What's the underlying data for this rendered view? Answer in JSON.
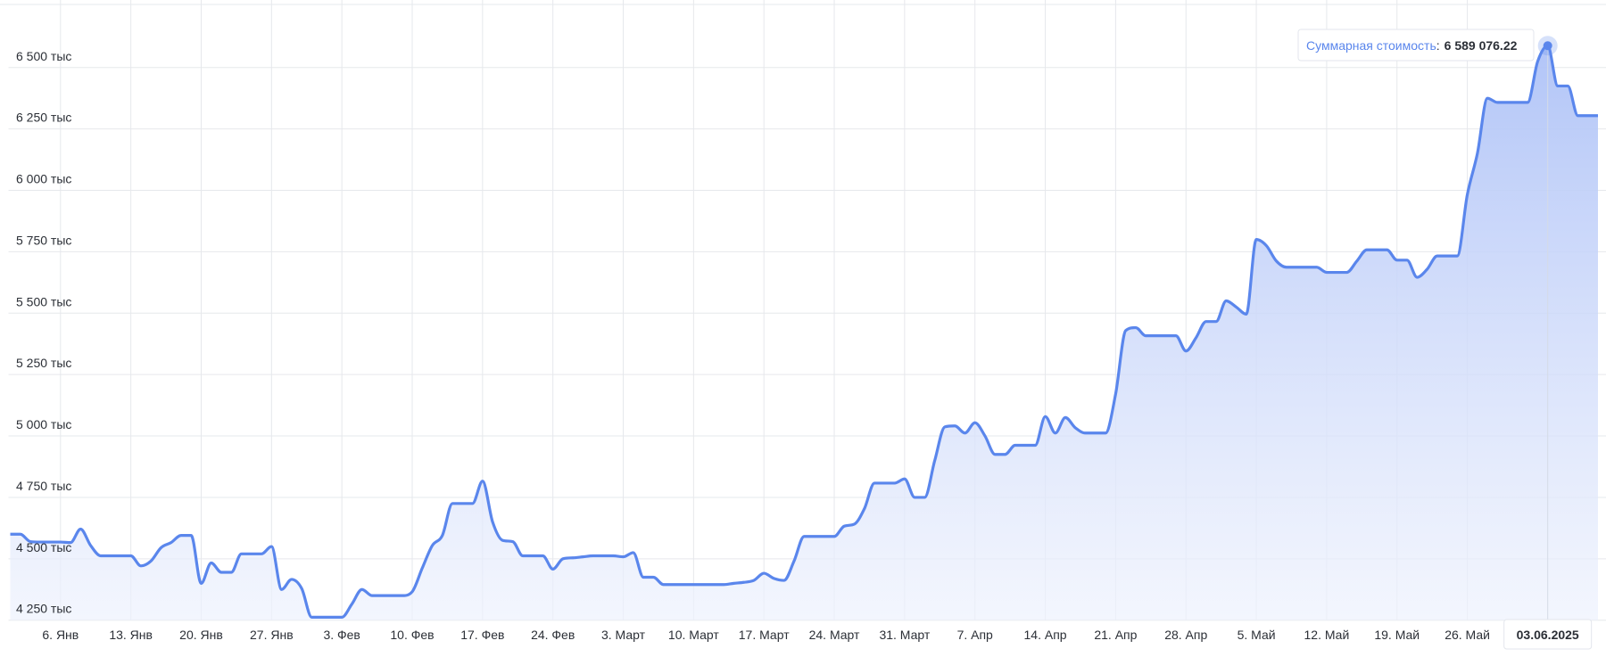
{
  "chart_data": {
    "type": "area",
    "x": [
      "2025-01-01",
      "2025-01-02",
      "2025-01-03",
      "2025-01-04",
      "2025-01-05",
      "2025-01-06",
      "2025-01-07",
      "2025-01-08",
      "2025-01-09",
      "2025-01-10",
      "2025-01-11",
      "2025-01-12",
      "2025-01-13",
      "2025-01-14",
      "2025-01-15",
      "2025-01-16",
      "2025-01-17",
      "2025-01-18",
      "2025-01-19",
      "2025-01-20",
      "2025-01-21",
      "2025-01-22",
      "2025-01-23",
      "2025-01-24",
      "2025-01-25",
      "2025-01-26",
      "2025-01-27",
      "2025-01-28",
      "2025-01-29",
      "2025-01-30",
      "2025-01-31",
      "2025-02-01",
      "2025-02-02",
      "2025-02-03",
      "2025-02-04",
      "2025-02-05",
      "2025-02-06",
      "2025-02-07",
      "2025-02-08",
      "2025-02-09",
      "2025-02-10",
      "2025-02-11",
      "2025-02-12",
      "2025-02-13",
      "2025-02-14",
      "2025-02-15",
      "2025-02-16",
      "2025-02-17",
      "2025-02-18",
      "2025-02-19",
      "2025-02-20",
      "2025-02-21",
      "2025-02-22",
      "2025-02-23",
      "2025-02-24",
      "2025-02-25",
      "2025-02-26",
      "2025-02-27",
      "2025-02-28",
      "2025-03-01",
      "2025-03-02",
      "2025-03-03",
      "2025-03-04",
      "2025-03-05",
      "2025-03-06",
      "2025-03-07",
      "2025-03-08",
      "2025-03-09",
      "2025-03-10",
      "2025-03-11",
      "2025-03-12",
      "2025-03-13",
      "2025-03-14",
      "2025-03-15",
      "2025-03-16",
      "2025-03-17",
      "2025-03-18",
      "2025-03-19",
      "2025-03-20",
      "2025-03-21",
      "2025-03-22",
      "2025-03-23",
      "2025-03-24",
      "2025-03-25",
      "2025-03-26",
      "2025-03-27",
      "2025-03-28",
      "2025-03-29",
      "2025-03-30",
      "2025-03-31",
      "2025-04-01",
      "2025-04-02",
      "2025-04-03",
      "2025-04-04",
      "2025-04-05",
      "2025-04-06",
      "2025-04-07",
      "2025-04-08",
      "2025-04-09",
      "2025-04-10",
      "2025-04-11",
      "2025-04-12",
      "2025-04-13",
      "2025-04-14",
      "2025-04-15",
      "2025-04-16",
      "2025-04-17",
      "2025-04-18",
      "2025-04-19",
      "2025-04-20",
      "2025-04-21",
      "2025-04-22",
      "2025-04-23",
      "2025-04-24",
      "2025-04-25",
      "2025-04-26",
      "2025-04-27",
      "2025-04-28",
      "2025-04-29",
      "2025-04-30",
      "2025-05-01",
      "2025-05-02",
      "2025-05-03",
      "2025-05-04",
      "2025-05-05",
      "2025-05-06",
      "2025-05-07",
      "2025-05-08",
      "2025-05-09",
      "2025-05-10",
      "2025-05-11",
      "2025-05-12",
      "2025-05-13",
      "2025-05-14",
      "2025-05-15",
      "2025-05-16",
      "2025-05-17",
      "2025-05-18",
      "2025-05-19",
      "2025-05-20",
      "2025-05-21",
      "2025-05-22",
      "2025-05-23",
      "2025-05-24",
      "2025-05-25",
      "2025-05-26",
      "2025-05-27",
      "2025-05-28",
      "2025-05-29",
      "2025-05-30",
      "2025-05-31",
      "2025-06-01",
      "2025-06-02",
      "2025-06-03",
      "2025-06-04",
      "2025-06-05",
      "2025-06-06",
      "2025-06-07",
      "2025-06-08"
    ],
    "series": [
      {
        "name": "Суммарная стоимость",
        "color": "#5a86ec",
        "values": [
          4600000,
          4600000,
          4570000,
          4568000,
          4568000,
          4568000,
          4566000,
          4621000,
          4554000,
          4512000,
          4512000,
          4512000,
          4512000,
          4471000,
          4491000,
          4545000,
          4566000,
          4595000,
          4595000,
          4400000,
          4483000,
          4445000,
          4445000,
          4520000,
          4520000,
          4520000,
          4550000,
          4375000,
          4416000,
          4379000,
          4262000,
          4262000,
          4262000,
          4262000,
          4316000,
          4375000,
          4350000,
          4350000,
          4350000,
          4350000,
          4366000,
          4462000,
          4554000,
          4595000,
          4725000,
          4725000,
          4725000,
          4816000,
          4650000,
          4575000,
          4570000,
          4512000,
          4512000,
          4512000,
          4458000,
          4500000,
          4504000,
          4508000,
          4512000,
          4512000,
          4512000,
          4508000,
          4525000,
          4425000,
          4425000,
          4395000,
          4395000,
          4395000,
          4395000,
          4395000,
          4395000,
          4395000,
          4400000,
          4404000,
          4412000,
          4441000,
          4420000,
          4412000,
          4491000,
          4591000,
          4591000,
          4591000,
          4591000,
          4633000,
          4641000,
          4704000,
          4808000,
          4808000,
          4808000,
          4825000,
          4750000,
          4750000,
          4900000,
          5037000,
          5041000,
          5012000,
          5054000,
          5000000,
          4925000,
          4925000,
          4962000,
          4962000,
          4962000,
          5079000,
          5012000,
          5075000,
          5033000,
          5012000,
          5012000,
          5012000,
          5171000,
          5429000,
          5441000,
          5408000,
          5408000,
          5408000,
          5408000,
          5346000,
          5400000,
          5466000,
          5466000,
          5550000,
          5525000,
          5496000,
          5800000,
          5775000,
          5712000,
          5687000,
          5687000,
          5687000,
          5687000,
          5666000,
          5666000,
          5666000,
          5712000,
          5758000,
          5758000,
          5758000,
          5716000,
          5716000,
          5646000,
          5679000,
          5733000,
          5733000,
          5733000,
          5983000,
          6150000,
          6375000,
          6358000,
          6358000,
          6358000,
          6358000,
          6525000,
          6589076.22,
          6425000,
          6425000,
          6304000,
          6304000,
          6304000
        ]
      }
    ],
    "xlim": [
      "2025-01-01",
      "2025-06-08"
    ],
    "xticks": [
      {
        "value": "2025-01-06",
        "label": "6. Янв"
      },
      {
        "value": "2025-01-13",
        "label": "13. Янв"
      },
      {
        "value": "2025-01-20",
        "label": "20. Янв"
      },
      {
        "value": "2025-01-27",
        "label": "27. Янв"
      },
      {
        "value": "2025-02-03",
        "label": "3. Фев"
      },
      {
        "value": "2025-02-10",
        "label": "10. Фев"
      },
      {
        "value": "2025-02-17",
        "label": "17. Фев"
      },
      {
        "value": "2025-02-24",
        "label": "24. Фев"
      },
      {
        "value": "2025-03-03",
        "label": "3. Март"
      },
      {
        "value": "2025-03-10",
        "label": "10. Март"
      },
      {
        "value": "2025-03-17",
        "label": "17. Март"
      },
      {
        "value": "2025-03-24",
        "label": "24. Март"
      },
      {
        "value": "2025-03-31",
        "label": "31. Март"
      },
      {
        "value": "2025-04-07",
        "label": "7. Апр"
      },
      {
        "value": "2025-04-14",
        "label": "14. Апр"
      },
      {
        "value": "2025-04-21",
        "label": "21. Апр"
      },
      {
        "value": "2025-04-28",
        "label": "28. Апр"
      },
      {
        "value": "2025-05-05",
        "label": "5. Май"
      },
      {
        "value": "2025-05-12",
        "label": "12. Май"
      },
      {
        "value": "2025-05-19",
        "label": "19. Май"
      },
      {
        "value": "2025-05-26",
        "label": "26. Май"
      }
    ],
    "ylim": [
      4250000,
      6750000
    ],
    "yticks": [
      {
        "value": 4250000,
        "label": "4 250 тыс"
      },
      {
        "value": 4500000,
        "label": "4 500 тыс"
      },
      {
        "value": 4750000,
        "label": "4 750 тыс"
      },
      {
        "value": 5000000,
        "label": "5 000 тыс"
      },
      {
        "value": 5250000,
        "label": "5 250 тыс"
      },
      {
        "value": 5500000,
        "label": "5 500 тыс"
      },
      {
        "value": 5750000,
        "label": "5 750 тыс"
      },
      {
        "value": 6000000,
        "label": "6 000 тыс"
      },
      {
        "value": 6250000,
        "label": "6 250 тыс"
      },
      {
        "value": 6500000,
        "label": "6 500 тыс"
      }
    ],
    "grid": true,
    "tooltip": {
      "x": "03.06.2025",
      "label": "Суммарная стоимость",
      "separator": ":",
      "value": 6589076.22,
      "value_label": "6 589 076.22"
    }
  }
}
